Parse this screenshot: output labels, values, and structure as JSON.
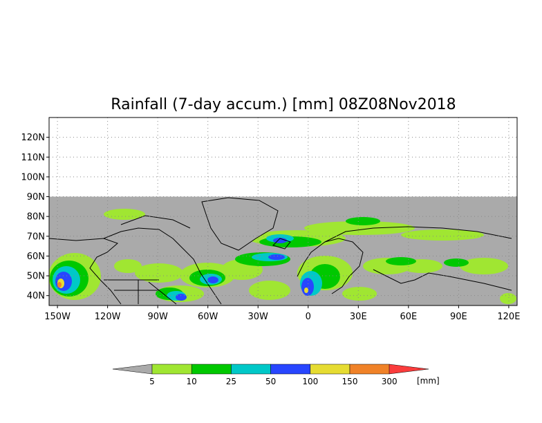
{
  "title": "Rainfall (7-day accum.) [mm] 08Z08Nov2018",
  "map": {
    "lon_range": [
      -155,
      125
    ],
    "lat_range": [
      35,
      130
    ],
    "data_lat_max": 90,
    "no_data_color": "#aaaaaa",
    "grid": true,
    "lat_ticks": [
      {
        "value": 120,
        "label": "120N"
      },
      {
        "value": 110,
        "label": "110N"
      },
      {
        "value": 100,
        "label": "100N"
      },
      {
        "value": 90,
        "label": "90N"
      },
      {
        "value": 80,
        "label": "80N"
      },
      {
        "value": 70,
        "label": "70N"
      },
      {
        "value": 60,
        "label": "60N"
      },
      {
        "value": 50,
        "label": "50N"
      },
      {
        "value": 40,
        "label": "40N"
      }
    ],
    "lon_ticks": [
      {
        "value": -150,
        "label": "150W"
      },
      {
        "value": -120,
        "label": "120W"
      },
      {
        "value": -90,
        "label": "90W"
      },
      {
        "value": -60,
        "label": "60W"
      },
      {
        "value": -30,
        "label": "30W"
      },
      {
        "value": 0,
        "label": "0"
      },
      {
        "value": 30,
        "label": "30E"
      },
      {
        "value": 60,
        "label": "60E"
      },
      {
        "value": 90,
        "label": "90E"
      },
      {
        "value": 120,
        "label": "120E"
      }
    ]
  },
  "colorbar": {
    "unit_label": "[mm]",
    "below_color": "#aaaaaa",
    "bins": [
      {
        "color": "#a0e632"
      },
      {
        "color": "#00c800"
      },
      {
        "color": "#00c8c8"
      },
      {
        "color": "#2846ff"
      },
      {
        "color": "#e6dc32"
      },
      {
        "color": "#f08228"
      }
    ],
    "above_color": "#fa3c3c",
    "labels": [
      "5",
      "10",
      "25",
      "50",
      "100",
      "150",
      "300"
    ]
  }
}
